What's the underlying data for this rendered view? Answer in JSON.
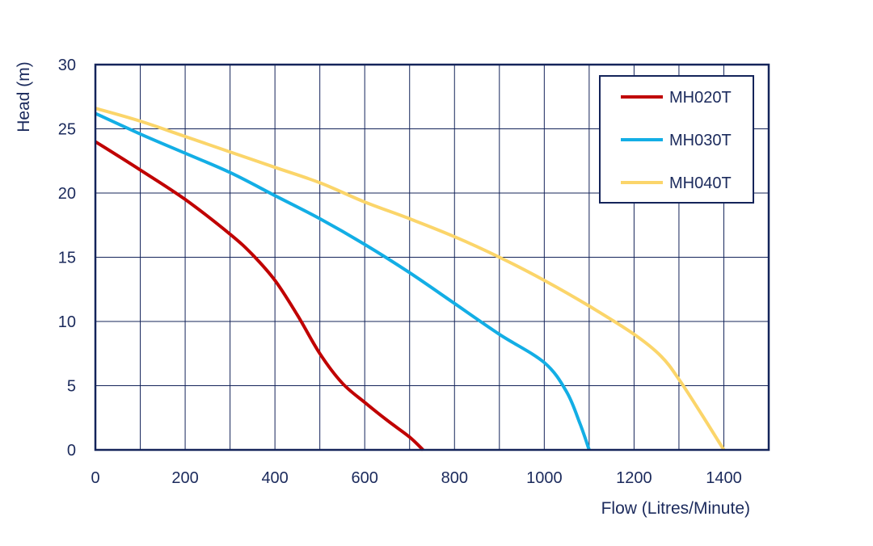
{
  "chart_data": {
    "type": "line",
    "xlabel": "Flow (Litres/Minute)",
    "ylabel": "Head (m)",
    "xlim": [
      0,
      1500
    ],
    "ylim": [
      0,
      30
    ],
    "x_ticks": [
      0,
      200,
      400,
      600,
      800,
      1000,
      1200,
      1400
    ],
    "y_ticks": [
      0,
      5,
      10,
      15,
      20,
      25,
      30
    ],
    "grid_step_x": 100,
    "grid_step_y": 5,
    "grid": true,
    "legend_position": "top-right",
    "colors": {
      "axis": "#14245a",
      "grid": "#14245a",
      "text": "#1b2a5c"
    },
    "series": [
      {
        "name": "MH020T",
        "color": "#c00000",
        "points": [
          [
            0,
            24
          ],
          [
            100,
            21.8
          ],
          [
            200,
            19.5
          ],
          [
            300,
            16.8
          ],
          [
            350,
            15.2
          ],
          [
            400,
            13.2
          ],
          [
            450,
            10.5
          ],
          [
            500,
            7.5
          ],
          [
            550,
            5.2
          ],
          [
            600,
            3.7
          ],
          [
            650,
            2.3
          ],
          [
            700,
            1.0
          ],
          [
            730,
            0
          ]
        ]
      },
      {
        "name": "MH030T",
        "color": "#13aee5",
        "points": [
          [
            0,
            26.2
          ],
          [
            100,
            24.6
          ],
          [
            200,
            23.1
          ],
          [
            300,
            21.6
          ],
          [
            400,
            19.8
          ],
          [
            500,
            18.0
          ],
          [
            600,
            16.0
          ],
          [
            700,
            13.8
          ],
          [
            800,
            11.4
          ],
          [
            900,
            9.0
          ],
          [
            1000,
            6.8
          ],
          [
            1050,
            4.5
          ],
          [
            1080,
            2.0
          ],
          [
            1100,
            0
          ]
        ]
      },
      {
        "name": "MH040T",
        "color": "#fbd56a",
        "points": [
          [
            0,
            26.6
          ],
          [
            100,
            25.6
          ],
          [
            200,
            24.4
          ],
          [
            300,
            23.2
          ],
          [
            400,
            22.0
          ],
          [
            500,
            20.8
          ],
          [
            600,
            19.3
          ],
          [
            700,
            18.0
          ],
          [
            800,
            16.6
          ],
          [
            900,
            15.0
          ],
          [
            1000,
            13.2
          ],
          [
            1100,
            11.2
          ],
          [
            1200,
            9.0
          ],
          [
            1260,
            7.3
          ],
          [
            1300,
            5.5
          ],
          [
            1350,
            2.8
          ],
          [
            1400,
            0
          ]
        ]
      }
    ]
  }
}
